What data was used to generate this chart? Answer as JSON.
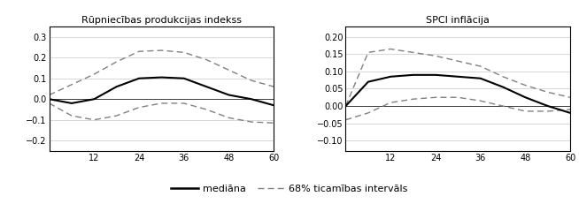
{
  "title1": "Rūpniecības produkcijas indekss",
  "title2": "SPCI inflācija",
  "x": [
    0,
    6,
    12,
    18,
    24,
    30,
    36,
    42,
    48,
    54,
    60
  ],
  "panel1_median": [
    0.0,
    -0.02,
    0.0,
    0.06,
    0.1,
    0.105,
    0.1,
    0.06,
    0.02,
    0.0,
    -0.03
  ],
  "panel1_upper": [
    0.02,
    0.07,
    0.12,
    0.18,
    0.23,
    0.235,
    0.225,
    0.19,
    0.14,
    0.09,
    0.06
  ],
  "panel1_lower": [
    -0.02,
    -0.08,
    -0.1,
    -0.08,
    -0.04,
    -0.02,
    -0.02,
    -0.05,
    -0.09,
    -0.11,
    -0.115
  ],
  "panel2_median": [
    0.0,
    0.07,
    0.085,
    0.09,
    0.09,
    0.085,
    0.08,
    0.055,
    0.025,
    0.0,
    -0.02
  ],
  "panel2_upper": [
    0.0,
    0.155,
    0.165,
    0.155,
    0.145,
    0.13,
    0.115,
    0.085,
    0.06,
    0.04,
    0.025
  ],
  "panel2_lower": [
    -0.04,
    -0.02,
    0.01,
    0.02,
    0.025,
    0.025,
    0.015,
    0.0,
    -0.015,
    -0.015,
    -0.01
  ],
  "panel1_ylim": [
    -0.25,
    0.35
  ],
  "panel1_yticks": [
    -0.2,
    -0.1,
    0.0,
    0.1,
    0.2,
    0.3
  ],
  "panel2_ylim": [
    -0.13,
    0.23
  ],
  "panel2_yticks": [
    -0.1,
    -0.05,
    0.0,
    0.05,
    0.1,
    0.15,
    0.2
  ],
  "xticks": [
    12,
    24,
    36,
    48,
    60
  ],
  "xlim": [
    0,
    60
  ],
  "median_color": "#000000",
  "ci_color": "#808080",
  "legend_median": "mediāna",
  "legend_ci": "68% ticamības intervāls",
  "bg_color": "#ffffff",
  "grid_color": "#c8c8c8",
  "spine_color": "#000000"
}
